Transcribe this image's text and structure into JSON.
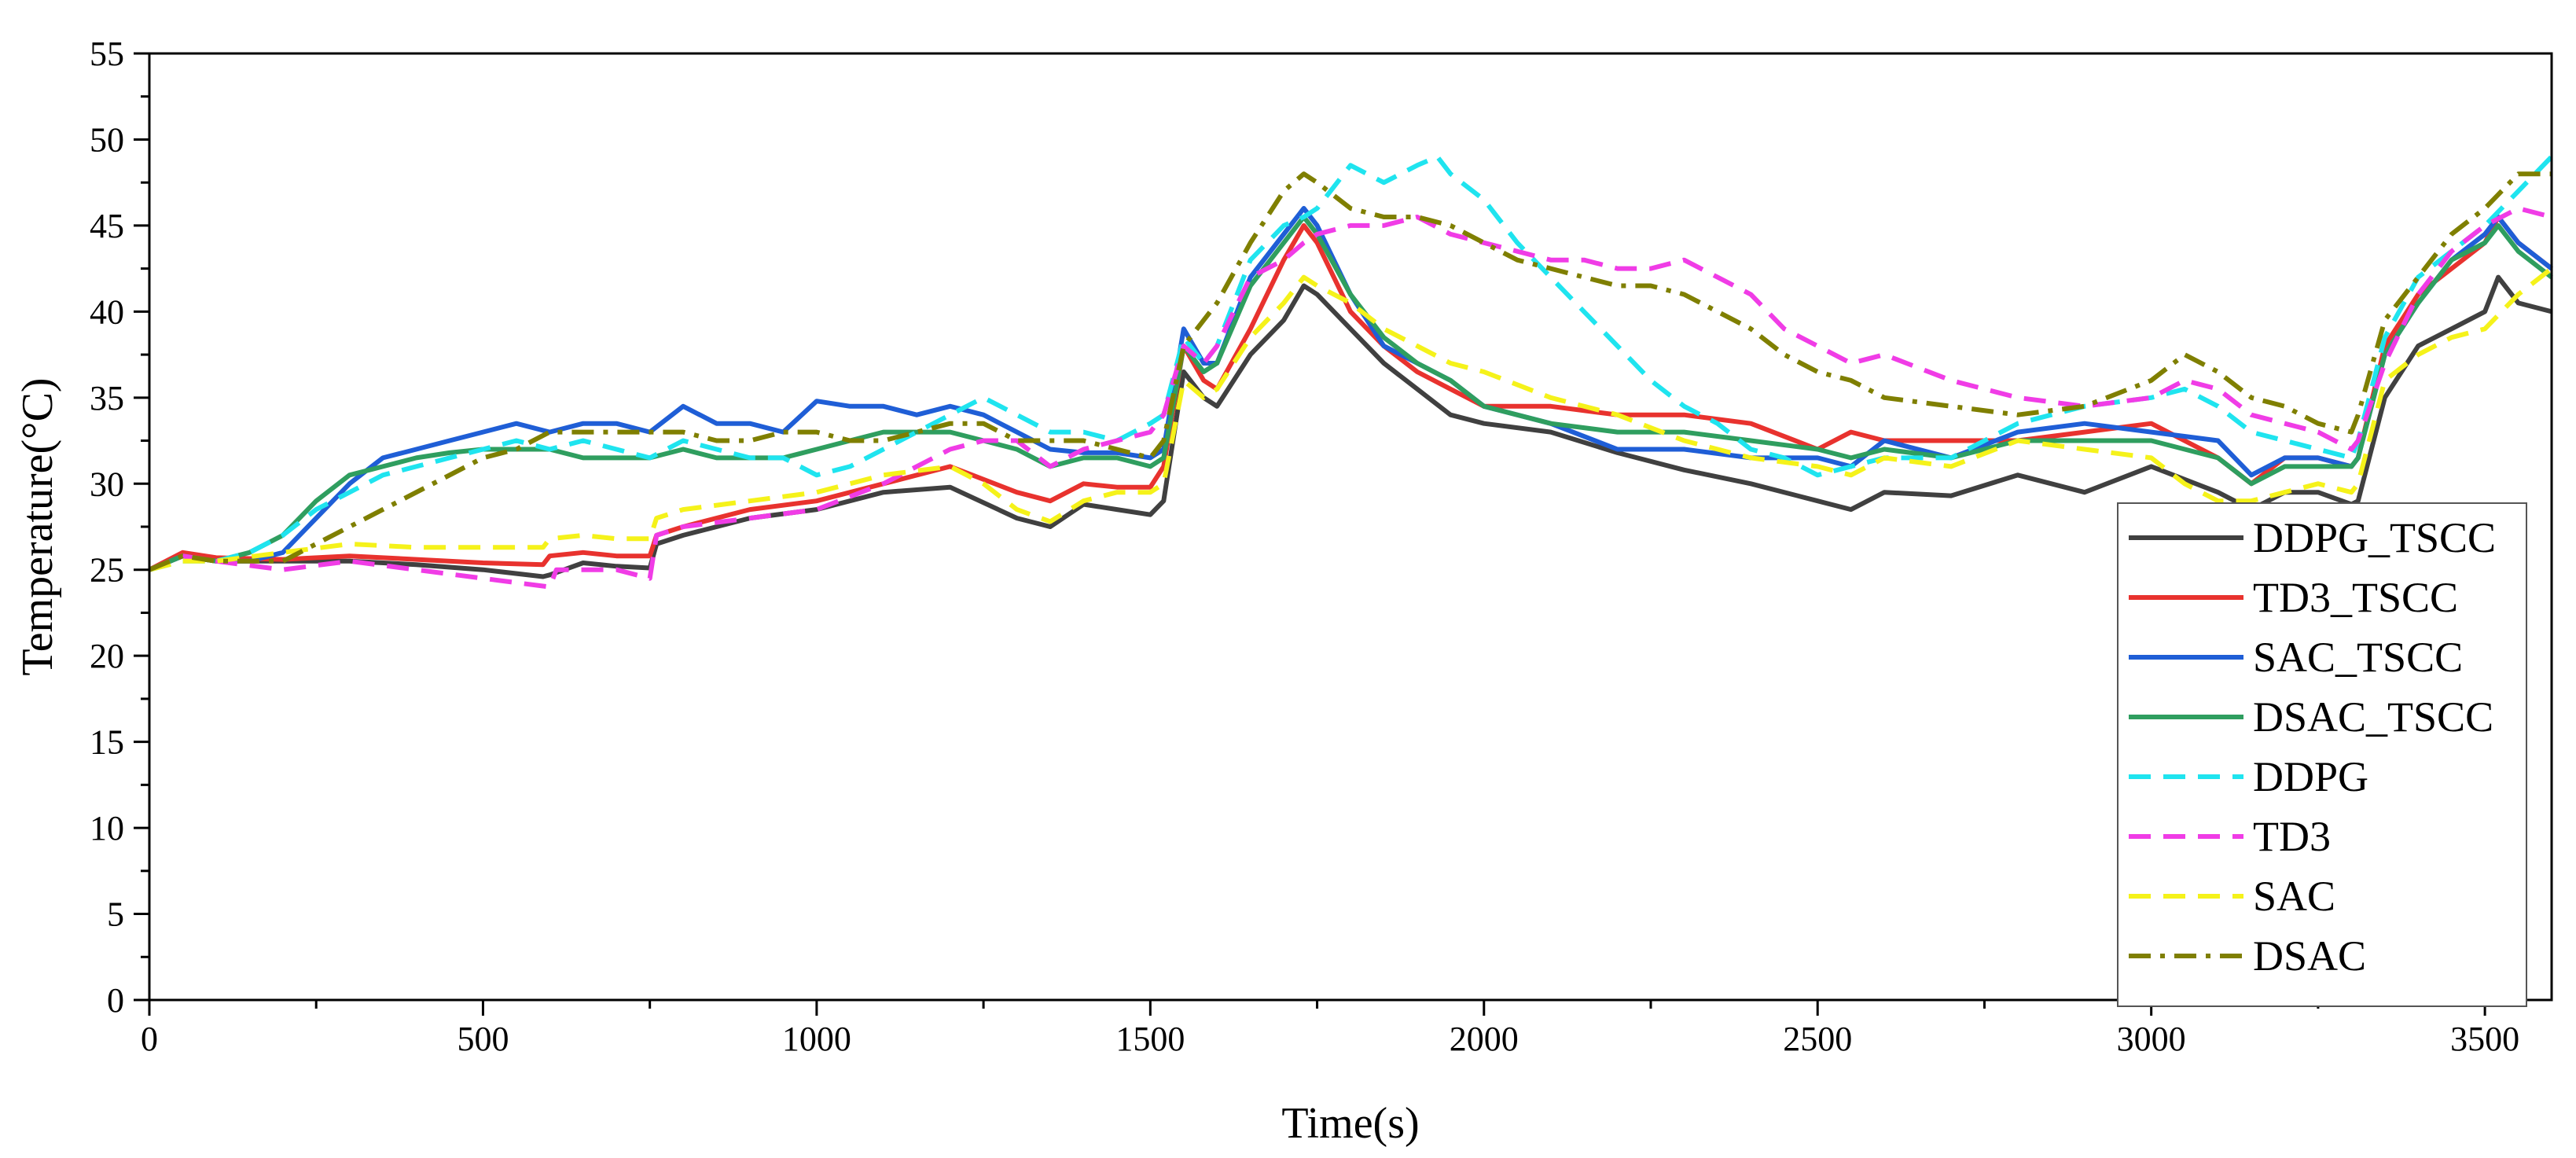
{
  "chart_data": {
    "type": "line",
    "title": "",
    "xlabel": "Time(s)",
    "ylabel": "Temperature(°C)",
    "xlim": [
      0,
      3600
    ],
    "ylim": [
      0,
      55
    ],
    "xticks": [
      0,
      500,
      1000,
      1500,
      2000,
      2500,
      3000,
      3500
    ],
    "yticks": [
      0,
      5,
      10,
      15,
      20,
      25,
      30,
      35,
      40,
      45,
      50,
      55
    ],
    "grid": false,
    "legend_position": "lower-right",
    "series": [
      {
        "name": "DDPG_TSCC",
        "color": "#404040",
        "dash": "solid",
        "x": [
          0,
          50,
          100,
          200,
          300,
          400,
          500,
          590,
          600,
          650,
          700,
          750,
          760,
          800,
          900,
          1000,
          1100,
          1200,
          1300,
          1350,
          1400,
          1450,
          1500,
          1520,
          1550,
          1580,
          1600,
          1650,
          1700,
          1730,
          1750,
          1800,
          1850,
          1900,
          1950,
          2000,
          2100,
          2200,
          2300,
          2400,
          2500,
          2550,
          2600,
          2700,
          2800,
          2900,
          3000,
          3100,
          3150,
          3200,
          3250,
          3300,
          3310,
          3350,
          3400,
          3450,
          3500,
          3520,
          3550,
          3600
        ],
        "y": [
          25,
          25.8,
          25.5,
          25.5,
          25.5,
          25.3,
          25,
          24.6,
          24.7,
          25.4,
          25.2,
          25.1,
          26.5,
          27,
          28,
          28.5,
          29.5,
          29.8,
          28,
          27.5,
          28.8,
          28.5,
          28.2,
          29,
          36.5,
          35,
          34.5,
          37.5,
          39.5,
          41.5,
          41,
          39,
          37,
          35.5,
          34,
          33.5,
          33,
          31.8,
          30.8,
          30,
          29,
          28.5,
          29.5,
          29.3,
          30.5,
          29.5,
          31,
          29.5,
          28.5,
          29.5,
          29.5,
          28.8,
          29,
          35,
          38,
          39,
          40,
          42,
          40.5,
          40
        ]
      },
      {
        "name": "TD3_TSCC",
        "color": "#e8322e",
        "dash": "solid",
        "x": [
          0,
          50,
          100,
          200,
          300,
          400,
          500,
          590,
          600,
          650,
          700,
          750,
          760,
          800,
          900,
          1000,
          1100,
          1200,
          1300,
          1350,
          1400,
          1450,
          1500,
          1520,
          1550,
          1580,
          1600,
          1650,
          1700,
          1730,
          1750,
          1800,
          1850,
          1900,
          1950,
          2000,
          2100,
          2200,
          2300,
          2400,
          2500,
          2550,
          2600,
          2700,
          2800,
          2900,
          3000,
          3100,
          3150,
          3200,
          3250,
          3300,
          3310,
          3350,
          3400,
          3450,
          3500,
          3520,
          3550,
          3600
        ],
        "y": [
          25,
          26,
          25.7,
          25.6,
          25.8,
          25.6,
          25.4,
          25.3,
          25.8,
          26,
          25.8,
          25.8,
          27,
          27.5,
          28.5,
          29,
          30,
          31,
          29.5,
          29,
          30,
          29.8,
          29.8,
          31,
          38,
          36,
          35.5,
          39,
          43,
          45,
          44,
          40,
          38,
          36.5,
          35.5,
          34.5,
          34.5,
          34,
          34,
          33.5,
          32,
          33,
          32.5,
          32.5,
          32.5,
          33,
          33.5,
          31.5,
          30,
          31.5,
          31.5,
          31,
          31.5,
          38,
          41,
          42.5,
          44,
          45.5,
          44,
          42.5
        ]
      },
      {
        "name": "SAC_TSCC",
        "color": "#1f5ed6",
        "dash": "solid",
        "x": [
          0,
          50,
          100,
          150,
          200,
          250,
          300,
          350,
          400,
          450,
          500,
          550,
          600,
          650,
          700,
          750,
          800,
          850,
          900,
          950,
          1000,
          1050,
          1100,
          1150,
          1200,
          1250,
          1300,
          1350,
          1400,
          1450,
          1500,
          1520,
          1550,
          1580,
          1600,
          1650,
          1700,
          1730,
          1750,
          1800,
          1850,
          1900,
          1950,
          2000,
          2100,
          2200,
          2300,
          2400,
          2500,
          2550,
          2600,
          2700,
          2800,
          2900,
          3000,
          3100,
          3150,
          3200,
          3250,
          3300,
          3310,
          3350,
          3400,
          3450,
          3500,
          3520,
          3550,
          3600
        ],
        "y": [
          25,
          25.8,
          25.5,
          25.5,
          26,
          28,
          30,
          31.5,
          32,
          32.5,
          33,
          33.5,
          33,
          33.5,
          33.5,
          33,
          34.5,
          33.5,
          33.5,
          33,
          34.8,
          34.5,
          34.5,
          34,
          34.5,
          34,
          33,
          32,
          31.8,
          31.8,
          31.5,
          32,
          39,
          37,
          37,
          42,
          44.5,
          46,
          45,
          41,
          38,
          37,
          36,
          34.5,
          33.5,
          32,
          32,
          31.5,
          31.5,
          31,
          32.5,
          31.5,
          33,
          33.5,
          33,
          32.5,
          30.5,
          31.5,
          31.5,
          31,
          31.5,
          37.5,
          40.5,
          43,
          44.5,
          45.5,
          44,
          42.5
        ]
      },
      {
        "name": "DSAC_TSCC",
        "color": "#2f9e5f",
        "dash": "solid",
        "x": [
          0,
          50,
          100,
          150,
          200,
          250,
          300,
          350,
          400,
          450,
          500,
          550,
          600,
          650,
          700,
          750,
          800,
          850,
          900,
          950,
          1000,
          1050,
          1100,
          1150,
          1200,
          1250,
          1300,
          1350,
          1400,
          1450,
          1500,
          1520,
          1550,
          1580,
          1600,
          1650,
          1700,
          1730,
          1750,
          1800,
          1850,
          1900,
          1950,
          2000,
          2100,
          2200,
          2300,
          2400,
          2500,
          2550,
          2600,
          2700,
          2800,
          2900,
          3000,
          3100,
          3150,
          3200,
          3250,
          3300,
          3310,
          3350,
          3400,
          3450,
          3500,
          3520,
          3550,
          3600
        ],
        "y": [
          25,
          25.8,
          25.5,
          26,
          27,
          29,
          30.5,
          31,
          31.5,
          31.8,
          32,
          32,
          32,
          31.5,
          31.5,
          31.5,
          32,
          31.5,
          31.5,
          31.5,
          32,
          32.5,
          33,
          33,
          33,
          32.5,
          32,
          31,
          31.5,
          31.5,
          31,
          31.5,
          38,
          36.5,
          37,
          41.5,
          44,
          45.5,
          44.5,
          41,
          38.5,
          37,
          36,
          34.5,
          33.5,
          33,
          33,
          32.5,
          32,
          31.5,
          32,
          31.5,
          32.5,
          32.5,
          32.5,
          31.5,
          30,
          31,
          31,
          31,
          31.5,
          37.5,
          40.5,
          43,
          44,
          45,
          43.5,
          42
        ]
      },
      {
        "name": "DDPG",
        "color": "#1fe4ef",
        "dash": "long",
        "x": [
          0,
          50,
          100,
          150,
          200,
          250,
          300,
          350,
          400,
          450,
          500,
          550,
          600,
          650,
          700,
          750,
          800,
          850,
          900,
          950,
          1000,
          1050,
          1100,
          1150,
          1200,
          1250,
          1300,
          1350,
          1400,
          1450,
          1500,
          1520,
          1550,
          1580,
          1600,
          1650,
          1700,
          1730,
          1750,
          1800,
          1850,
          1900,
          1930,
          1950,
          2000,
          2050,
          2100,
          2150,
          2200,
          2250,
          2300,
          2350,
          2400,
          2450,
          2500,
          2550,
          2600,
          2700,
          2800,
          2900,
          3000,
          3050,
          3100,
          3150,
          3200,
          3250,
          3300,
          3310,
          3350,
          3400,
          3450,
          3500,
          3550,
          3600
        ],
        "y": [
          25,
          25.5,
          25.5,
          26,
          27,
          28.5,
          29.5,
          30.5,
          31,
          31.5,
          32,
          32.5,
          32,
          32.5,
          32,
          31.5,
          32.5,
          32,
          31.5,
          31.5,
          30.5,
          31,
          32,
          33,
          34,
          35,
          34,
          33,
          33,
          32.5,
          33.5,
          34,
          38.5,
          37,
          38,
          43,
          45,
          45.5,
          46,
          48.5,
          47.5,
          48.5,
          49,
          48,
          46.5,
          44,
          42,
          40,
          38,
          36,
          34.5,
          33.5,
          32,
          31.5,
          30.5,
          31,
          31.5,
          31.5,
          33.5,
          34.5,
          35,
          35.5,
          34.5,
          33,
          32.5,
          32,
          31.5,
          32.5,
          38.5,
          42,
          43.5,
          45,
          47,
          49
        ]
      },
      {
        "name": "TD3",
        "color": "#f03ce6",
        "dash": "long",
        "x": [
          0,
          50,
          100,
          200,
          300,
          400,
          500,
          600,
          610,
          650,
          700,
          750,
          760,
          800,
          900,
          1000,
          1100,
          1200,
          1250,
          1300,
          1350,
          1400,
          1450,
          1500,
          1520,
          1550,
          1580,
          1600,
          1650,
          1700,
          1730,
          1750,
          1800,
          1850,
          1900,
          1950,
          2000,
          2050,
          2100,
          2150,
          2200,
          2250,
          2300,
          2350,
          2400,
          2450,
          2500,
          2550,
          2600,
          2700,
          2800,
          2900,
          3000,
          3050,
          3100,
          3150,
          3200,
          3250,
          3300,
          3310,
          3350,
          3400,
          3450,
          3500,
          3550,
          3600
        ],
        "y": [
          25,
          25.8,
          25.5,
          25,
          25.5,
          25,
          24.5,
          24,
          25,
          25,
          25,
          24.5,
          27,
          27.5,
          28,
          28.5,
          30,
          32,
          32.5,
          32.5,
          31,
          32,
          32.5,
          33,
          34,
          38,
          37,
          38,
          42,
          43,
          44,
          44.5,
          45,
          45,
          45.5,
          44.5,
          44,
          43.5,
          43,
          43,
          42.5,
          42.5,
          43,
          42,
          41,
          39,
          38,
          37,
          37.5,
          36,
          35,
          34.5,
          35,
          36,
          35.5,
          34,
          33.5,
          33,
          32,
          32.5,
          37,
          41,
          43.5,
          45,
          46,
          45.5
        ]
      },
      {
        "name": "SAC",
        "color": "#f5f21a",
        "dash": "long",
        "x": [
          0,
          50,
          100,
          200,
          300,
          400,
          500,
          590,
          600,
          650,
          700,
          750,
          760,
          800,
          900,
          1000,
          1100,
          1200,
          1250,
          1300,
          1350,
          1400,
          1450,
          1500,
          1520,
          1550,
          1580,
          1600,
          1650,
          1700,
          1730,
          1750,
          1800,
          1850,
          1900,
          1950,
          2000,
          2100,
          2200,
          2300,
          2400,
          2500,
          2550,
          2600,
          2700,
          2800,
          2900,
          3000,
          3050,
          3100,
          3150,
          3200,
          3250,
          3300,
          3310,
          3350,
          3400,
          3450,
          3500,
          3550,
          3600
        ],
        "y": [
          25,
          25.5,
          25.5,
          26,
          26.5,
          26.3,
          26.3,
          26.3,
          26.8,
          27,
          26.8,
          26.8,
          28,
          28.5,
          29,
          29.5,
          30.5,
          31,
          30,
          28.5,
          27.8,
          29,
          29.5,
          29.5,
          30,
          36,
          35,
          35.5,
          38.5,
          40.5,
          42,
          41.5,
          40.5,
          39,
          38,
          37,
          36.5,
          35,
          34,
          32.5,
          31.5,
          31,
          30.5,
          31.5,
          31,
          32.5,
          32,
          31.5,
          30,
          29,
          29,
          29.5,
          30,
          29.5,
          30,
          36,
          37.5,
          38.5,
          39,
          41,
          42.5
        ]
      },
      {
        "name": "DSAC",
        "color": "#7f7f00",
        "dash": "dashdot",
        "x": [
          0,
          50,
          100,
          150,
          200,
          250,
          300,
          350,
          400,
          450,
          500,
          550,
          600,
          650,
          700,
          750,
          800,
          850,
          900,
          950,
          1000,
          1050,
          1100,
          1150,
          1200,
          1250,
          1300,
          1350,
          1400,
          1450,
          1500,
          1520,
          1550,
          1580,
          1600,
          1650,
          1700,
          1730,
          1750,
          1800,
          1850,
          1900,
          1950,
          2000,
          2050,
          2100,
          2150,
          2200,
          2250,
          2300,
          2350,
          2400,
          2450,
          2500,
          2550,
          2600,
          2700,
          2800,
          2900,
          3000,
          3050,
          3100,
          3150,
          3200,
          3250,
          3300,
          3310,
          3350,
          3400,
          3450,
          3500,
          3550,
          3600
        ],
        "y": [
          25,
          25.8,
          25.5,
          25.5,
          25.5,
          26.5,
          27.5,
          28.5,
          29.5,
          30.5,
          31.5,
          32,
          33,
          33,
          33,
          33,
          33,
          32.5,
          32.5,
          33,
          33,
          32.5,
          32.5,
          33,
          33.5,
          33.5,
          32.5,
          32.5,
          32.5,
          32,
          31.5,
          32.5,
          38,
          39.5,
          40.5,
          44,
          47,
          48,
          47.5,
          46,
          45.5,
          45.5,
          45,
          44,
          43,
          42.5,
          42,
          41.5,
          41.5,
          41,
          40,
          39,
          37.5,
          36.5,
          36,
          35,
          34.5,
          34,
          34.5,
          36,
          37.5,
          36.5,
          35,
          34.5,
          33.5,
          33,
          34,
          39.5,
          42,
          44.5,
          46,
          48,
          48
        ]
      }
    ]
  }
}
